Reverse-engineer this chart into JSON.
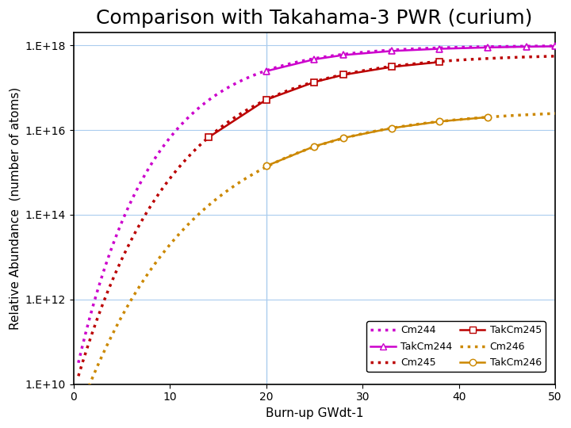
{
  "title": "Comparison with Takahama-3 PWR (curium)",
  "xlabel": "Burn-up GWdt-1",
  "ylabel": "Relative Abundance  (number of atoms)",
  "xlim": [
    0,
    50
  ],
  "ylim_log": [
    10000000000.0,
    2e+18
  ],
  "yticks": [
    10000000000.0,
    1000000000000.0,
    100000000000000.0,
    1e+16,
    1e+18
  ],
  "ytick_labels": [
    "1.E+10",
    "1.E+12",
    "1.E+14",
    "1.E+16",
    "1.E+18"
  ],
  "xticks": [
    0,
    10,
    20,
    30,
    40,
    50
  ],
  "vline_x": 20,
  "color_cm244": "#cc00cc",
  "color_cm245": "#bb0000",
  "color_cm246": "#cc8800",
  "background_color": "#ffffff",
  "title_fontsize": 18,
  "axis_fontsize": 11,
  "tick_fontsize": 10
}
